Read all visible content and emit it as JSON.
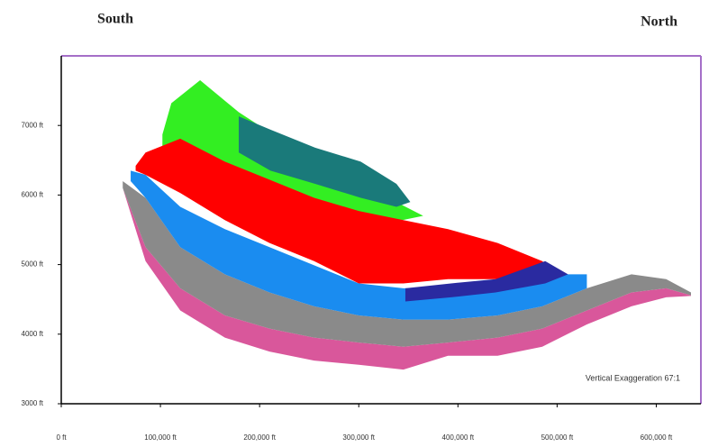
{
  "chart_data": {
    "type": "area",
    "left_label": "South",
    "right_label": "North",
    "annotation": "Vertical Exaggeration 67:1",
    "xlim": [
      0,
      645000
    ],
    "ylim": [
      3000,
      8000
    ],
    "xticks": [
      {
        "value": 0,
        "label": "0 ft"
      },
      {
        "value": 100000,
        "label": "100,000 ft"
      },
      {
        "value": 200000,
        "label": "200,000 ft"
      },
      {
        "value": 300000,
        "label": "300,000 ft"
      },
      {
        "value": 400000,
        "label": "400,000 ft"
      },
      {
        "value": 500000,
        "label": "500,000 ft"
      },
      {
        "value": 600000,
        "label": "600,000 ft"
      }
    ],
    "yticks": [
      {
        "value": 3000,
        "label": "3000 ft"
      },
      {
        "value": 4000,
        "label": "4000 ft"
      },
      {
        "value": 5000,
        "label": "5000 ft"
      },
      {
        "value": 6000,
        "label": "6000 ft"
      },
      {
        "value": 7000,
        "label": "7000 ft"
      }
    ],
    "series": [
      {
        "color": "#d9579b",
        "x": [
          62000,
          85000,
          120000,
          165000,
          210000,
          255000,
          300000,
          345000,
          390000,
          440000,
          485000,
          530000,
          575000,
          610000,
          635000
        ],
        "top": [
          6100,
          5250,
          4660,
          4270,
          4080,
          3950,
          3880,
          3820,
          3880,
          3950,
          4080,
          4340,
          4600,
          4660,
          4560
        ],
        "bottom": [
          6100,
          5050,
          4340,
          3950,
          3750,
          3620,
          3560,
          3490,
          3690,
          3690,
          3820,
          4140,
          4400,
          4530,
          4550
        ]
      },
      {
        "color": "#8a8a8a",
        "x": [
          62000,
          85000,
          120000,
          165000,
          210000,
          255000,
          300000,
          345000,
          390000,
          440000,
          485000,
          530000,
          575000,
          610000,
          635000
        ],
        "top": [
          6200,
          5960,
          5250,
          4860,
          4600,
          4400,
          4270,
          4210,
          4210,
          4270,
          4400,
          4660,
          4860,
          4790,
          4600
        ],
        "bottom": [
          6100,
          5250,
          4660,
          4270,
          4080,
          3950,
          3880,
          3820,
          3880,
          3950,
          4080,
          4340,
          4600,
          4660,
          4560
        ]
      },
      {
        "color": "#33ee22",
        "x": [
          102000,
          111000,
          140000,
          179000,
          256000,
          320000,
          365000
        ],
        "top": [
          6870,
          7320,
          7650,
          7190,
          6480,
          6030,
          5700
        ],
        "bottom": [
          6680,
          6600,
          6450,
          6250,
          5770,
          5570,
          5700
        ]
      },
      {
        "color": "#1a7a7a",
        "x": [
          179000,
          211000,
          256000,
          302000,
          338000,
          352000
        ],
        "top": [
          7130,
          6940,
          6680,
          6480,
          6160,
          5900
        ],
        "bottom": [
          6610,
          6350,
          6160,
          5960,
          5830,
          5900
        ]
      },
      {
        "color": "#1a8cf0",
        "x": [
          70000,
          85000,
          120000,
          165000,
          210000,
          255000,
          300000,
          345000,
          390000,
          440000,
          485000,
          530000
        ],
        "top": [
          6350,
          6290,
          5830,
          5510,
          5250,
          4990,
          4730,
          4660,
          4660,
          4660,
          4860,
          4860
        ],
        "bottom": [
          6200,
          5960,
          5250,
          4860,
          4600,
          4400,
          4270,
          4210,
          4210,
          4270,
          4400,
          4660
        ]
      },
      {
        "color": "#ff0000",
        "x": [
          75000,
          85000,
          120000,
          165000,
          210000,
          255000,
          300000,
          345000,
          390000,
          440000,
          485000,
          497000
        ],
        "top": [
          6420,
          6610,
          6810,
          6480,
          6220,
          5960,
          5770,
          5640,
          5510,
          5310,
          5050,
          4920
        ],
        "bottom": [
          6350,
          6290,
          6030,
          5640,
          5310,
          5050,
          4730,
          4730,
          4790,
          4790,
          4860,
          4920
        ]
      },
      {
        "color": "#2a2aa0",
        "x": [
          347000,
          393000,
          438000,
          488000,
          511000
        ],
        "top": [
          4660,
          4730,
          4790,
          5050,
          4860
        ],
        "bottom": [
          4470,
          4530,
          4600,
          4730,
          4860
        ]
      }
    ]
  }
}
